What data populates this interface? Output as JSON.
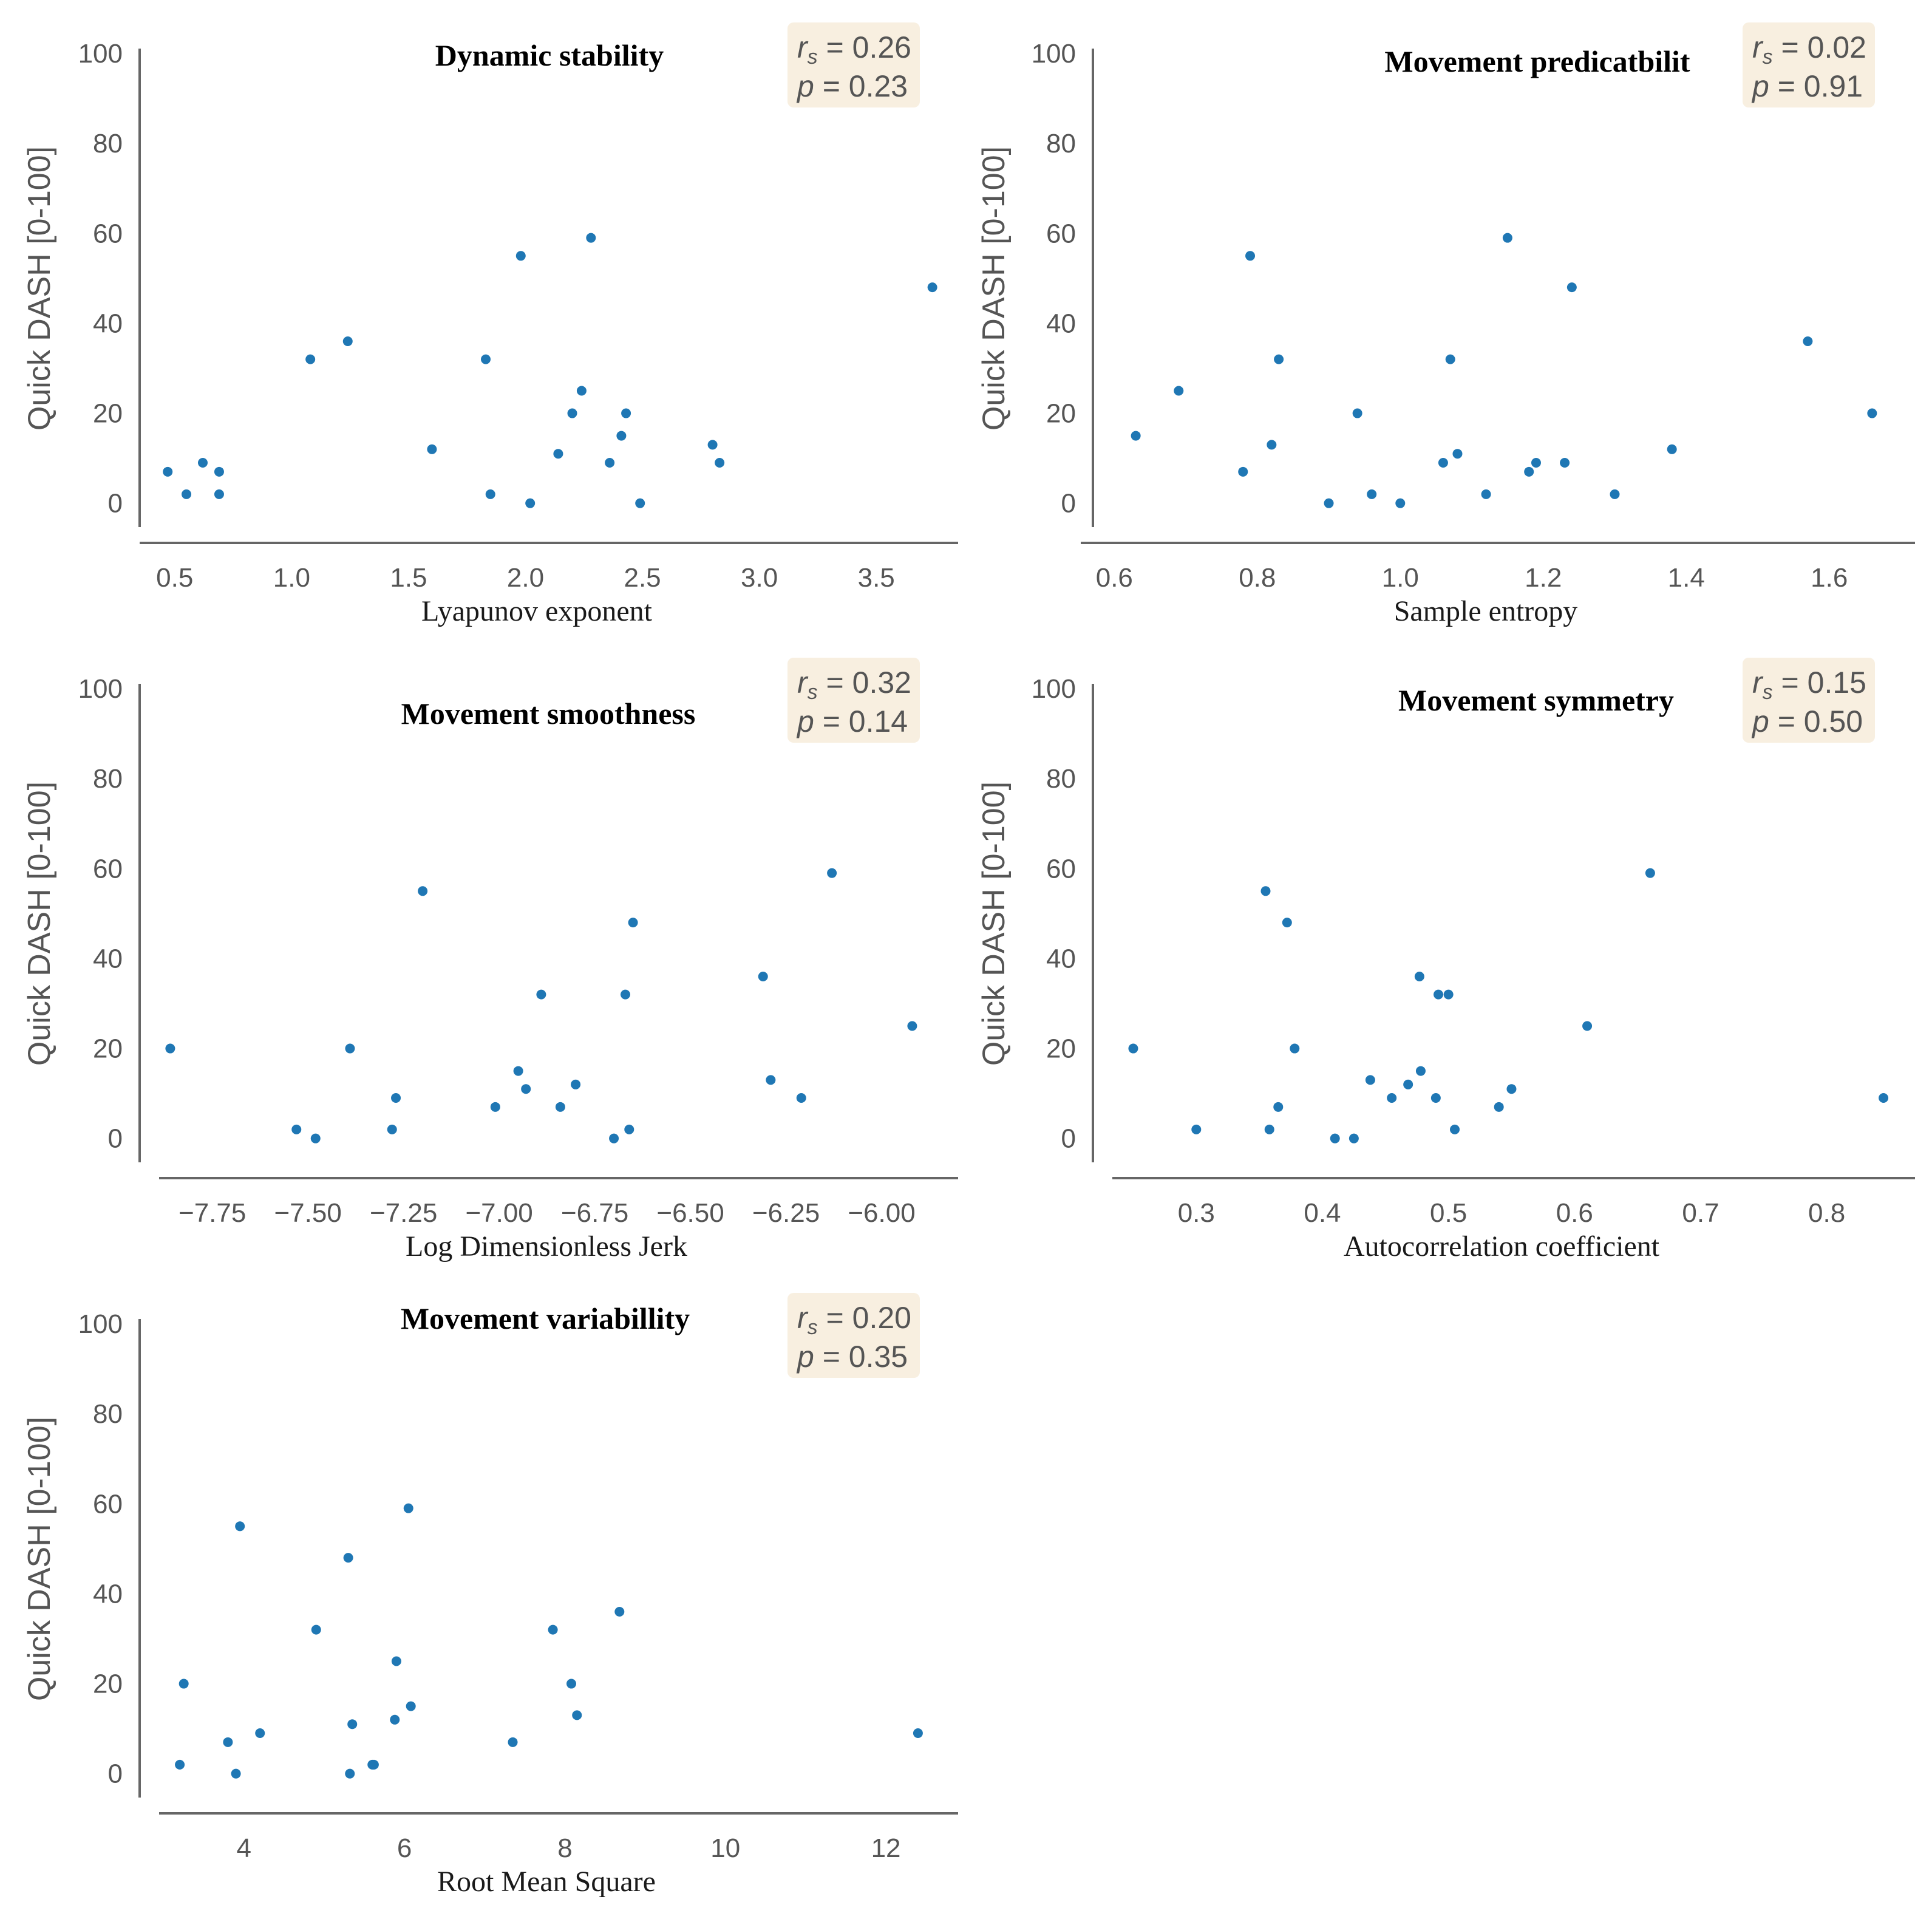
{
  "colors": {
    "point": "#1f77b4",
    "stat_box": "#f8efe0",
    "axis": "#666666",
    "tick_text": "#555555"
  },
  "chart_data": [
    {
      "type": "scatter",
      "title": "Dynamic stability",
      "xlabel": "Lyapunov exponent",
      "ylabel": "Quick DASH [0-100]",
      "xlim": [
        0.35,
        3.85
      ],
      "ylim": [
        -4.5,
        100
      ],
      "xticks": [
        "0.5",
        "1.0",
        "1.5",
        "2.0",
        "2.5",
        "3.0",
        "3.5"
      ],
      "xtick_values": [
        0.5,
        1.0,
        1.5,
        2.0,
        2.5,
        3.0,
        3.5
      ],
      "yticks": [
        "0",
        "20",
        "40",
        "60",
        "80",
        "100"
      ],
      "ytick_values": [
        0,
        20,
        40,
        60,
        80,
        100
      ],
      "stat_r_label": "r",
      "stat_r_sub": "s",
      "stat_r_value": " = 0.26",
      "stat_p_label": "p",
      "stat_p_value": " = 0.23",
      "x": [
        0.47,
        0.55,
        0.62,
        0.69,
        0.69,
        1.08,
        1.24,
        1.6,
        1.83,
        1.85,
        1.98,
        2.02,
        2.14,
        2.2,
        2.24,
        2.28,
        2.36,
        2.41,
        2.43,
        2.49,
        2.8,
        2.83,
        3.74
      ],
      "y": [
        7,
        2,
        9,
        7,
        2,
        32,
        36,
        12,
        32,
        2,
        55,
        0,
        11,
        20,
        25,
        59,
        9,
        15,
        20,
        0,
        13,
        9,
        48
      ]
    },
    {
      "type": "scatter",
      "title": "Movement predicatbilit",
      "xlabel": "Sample entropy",
      "ylabel": "Quick DASH [0-100]",
      "xlim": [
        0.57,
        1.72
      ],
      "ylim": [
        -4.5,
        100
      ],
      "xticks": [
        "0.6",
        "0.8",
        "1.0",
        "1.2",
        "1.4",
        "1.6"
      ],
      "xtick_values": [
        0.6,
        0.8,
        1.0,
        1.2,
        1.4,
        1.6
      ],
      "yticks": [
        "0",
        "20",
        "40",
        "60",
        "80",
        "100"
      ],
      "ytick_values": [
        0,
        20,
        40,
        60,
        80,
        100
      ],
      "stat_r_label": "r",
      "stat_r_sub": "s",
      "stat_r_value": " = 0.02",
      "stat_p_label": "p",
      "stat_p_value": " = 0.91",
      "x": [
        0.63,
        0.69,
        0.78,
        0.79,
        0.82,
        0.83,
        0.9,
        0.94,
        0.96,
        1.0,
        1.06,
        1.07,
        1.08,
        1.12,
        1.15,
        1.18,
        1.19,
        1.23,
        1.24,
        1.3,
        1.38,
        1.57,
        1.66
      ],
      "y": [
        15,
        25,
        7,
        55,
        13,
        32,
        0,
        20,
        2,
        0,
        9,
        32,
        11,
        2,
        59,
        7,
        9,
        9,
        48,
        2,
        12,
        36,
        20
      ]
    },
    {
      "type": "scatter",
      "title": "Movement smoothness",
      "xlabel": "Log Dimensionless Jerk",
      "ylabel": "Quick DASH [0-100]",
      "xlim": [
        -7.94,
        -5.8
      ],
      "ylim": [
        -4.5,
        100
      ],
      "xticks": [
        "−7.75",
        "−7.50",
        "−7.25",
        "−7.00",
        "−6.75",
        "−6.50",
        "−6.25",
        "−6.00"
      ],
      "xtick_values": [
        -7.75,
        -7.5,
        -7.25,
        -7.0,
        -6.75,
        -6.5,
        -6.25,
        -6.0
      ],
      "yticks": [
        "0",
        "20",
        "40",
        "60",
        "80",
        "100"
      ],
      "ytick_values": [
        0,
        20,
        40,
        60,
        80,
        100
      ],
      "stat_r_label": "r",
      "stat_r_sub": "s",
      "stat_r_value": " = 0.32",
      "stat_p_label": "p",
      "stat_p_value": " = 0.14",
      "x": [
        -7.86,
        -7.53,
        -7.48,
        -7.39,
        -7.28,
        -7.27,
        -7.2,
        -7.01,
        -6.95,
        -6.93,
        -6.89,
        -6.84,
        -6.8,
        -6.7,
        -6.67,
        -6.66,
        -6.65,
        -6.31,
        -6.29,
        -6.21,
        -6.13,
        -5.92
      ],
      "y": [
        20,
        2,
        0,
        20,
        2,
        9,
        55,
        7,
        15,
        11,
        32,
        7,
        12,
        0,
        32,
        2,
        48,
        36,
        13,
        9,
        59,
        25
      ]
    },
    {
      "type": "scatter",
      "title": "Movement symmetry",
      "xlabel": "Autocorrelation coefficient",
      "ylabel": "Quick DASH [0-100]",
      "xlim": [
        0.218,
        0.87
      ],
      "ylim": [
        -4.5,
        100
      ],
      "xticks": [
        "0.3",
        "0.4",
        "0.5",
        "0.6",
        "0.7",
        "0.8"
      ],
      "xtick_values": [
        0.3,
        0.4,
        0.5,
        0.6,
        0.7,
        0.8
      ],
      "yticks": [
        "0",
        "20",
        "40",
        "60",
        "80",
        "100"
      ],
      "ytick_values": [
        0,
        20,
        40,
        60,
        80,
        100
      ],
      "stat_r_label": "r",
      "stat_r_sub": "s",
      "stat_r_value": " = 0.15",
      "stat_p_label": "p",
      "stat_p_value": " = 0.50",
      "x": [
        0.25,
        0.3,
        0.355,
        0.358,
        0.365,
        0.372,
        0.378,
        0.41,
        0.425,
        0.438,
        0.455,
        0.468,
        0.477,
        0.478,
        0.49,
        0.492,
        0.5,
        0.505,
        0.54,
        0.55,
        0.61,
        0.66,
        0.845
      ],
      "y": [
        20,
        2,
        55,
        2,
        7,
        48,
        20,
        0,
        0,
        13,
        9,
        12,
        36,
        15,
        9,
        32,
        32,
        2,
        7,
        11,
        25,
        59,
        9
      ]
    },
    {
      "type": "scatter",
      "title": "Movement variabillity",
      "xlabel": "Root Mean Square",
      "ylabel": "Quick DASH [0-100]",
      "xlim": [
        2.7,
        12.9
      ],
      "ylim": [
        -4.5,
        100
      ],
      "xticks": [
        "4",
        "6",
        "8",
        "10",
        "12"
      ],
      "xtick_values": [
        4,
        6,
        8,
        10,
        12
      ],
      "yticks": [
        "0",
        "20",
        "40",
        "60",
        "80",
        "100"
      ],
      "ytick_values": [
        0,
        20,
        40,
        60,
        80,
        100
      ],
      "stat_r_label": "r",
      "stat_r_sub": "s",
      "stat_r_value": " = 0.20",
      "stat_p_label": "p",
      "stat_p_value": " = 0.35",
      "x": [
        3.2,
        3.25,
        3.8,
        3.9,
        3.95,
        4.2,
        4.9,
        5.3,
        5.32,
        5.35,
        5.6,
        5.62,
        5.88,
        5.9,
        6.05,
        6.08,
        7.35,
        7.85,
        8.08,
        8.15,
        8.68,
        12.4
      ],
      "y": [
        2,
        20,
        7,
        0,
        55,
        9,
        32,
        48,
        0,
        11,
        2,
        2,
        12,
        25,
        59,
        15,
        7,
        32,
        20,
        13,
        36,
        9
      ]
    }
  ]
}
